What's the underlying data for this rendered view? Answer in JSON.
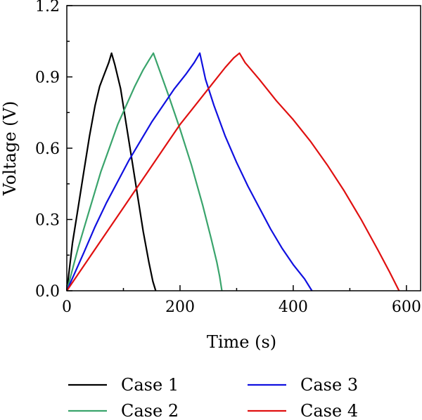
{
  "chart_data": {
    "type": "line",
    "xlabel": "Time (s)",
    "ylabel": "Voltage (V)",
    "xlim": [
      0,
      625
    ],
    "ylim": [
      0,
      1.2
    ],
    "x_ticks": [
      0,
      200,
      400,
      600
    ],
    "x_tick_labels": [
      "0",
      "200",
      "400",
      "600"
    ],
    "x_minor_ticks": [
      100,
      300,
      500
    ],
    "y_ticks": [
      0.0,
      0.3,
      0.6,
      0.9,
      1.2
    ],
    "y_tick_labels": [
      "0.0",
      "0.3",
      "0.6",
      "0.9",
      "1.2"
    ],
    "y_minor_ticks": [
      0.15,
      0.45,
      0.75,
      1.05
    ],
    "grid": false,
    "legend_position": "bottom",
    "series": [
      {
        "name": "Case 1",
        "color": "#000000",
        "points": [
          [
            0,
            0
          ],
          [
            5,
            0.1
          ],
          [
            10,
            0.2
          ],
          [
            20,
            0.35
          ],
          [
            30,
            0.5
          ],
          [
            40,
            0.65
          ],
          [
            50,
            0.78
          ],
          [
            58,
            0.86
          ],
          [
            66,
            0.91
          ],
          [
            74,
            0.96
          ],
          [
            79,
            1.0
          ],
          [
            85,
            0.95
          ],
          [
            95,
            0.85
          ],
          [
            105,
            0.7
          ],
          [
            115,
            0.55
          ],
          [
            125,
            0.4
          ],
          [
            135,
            0.25
          ],
          [
            145,
            0.12
          ],
          [
            152,
            0.04
          ],
          [
            157,
            0.0
          ]
        ]
      },
      {
        "name": "Case 2",
        "color": "#3aa46c",
        "points": [
          [
            0,
            0
          ],
          [
            10,
            0.09
          ],
          [
            20,
            0.18
          ],
          [
            30,
            0.26
          ],
          [
            45,
            0.38
          ],
          [
            60,
            0.5
          ],
          [
            75,
            0.6
          ],
          [
            90,
            0.7
          ],
          [
            105,
            0.78
          ],
          [
            120,
            0.86
          ],
          [
            135,
            0.93
          ],
          [
            145,
            0.97
          ],
          [
            153,
            1.0
          ],
          [
            165,
            0.92
          ],
          [
            180,
            0.82
          ],
          [
            200,
            0.68
          ],
          [
            220,
            0.53
          ],
          [
            240,
            0.36
          ],
          [
            255,
            0.22
          ],
          [
            265,
            0.12
          ],
          [
            270,
            0.06
          ],
          [
            274,
            0.0
          ]
        ]
      },
      {
        "name": "Case 3",
        "color": "#1010e0",
        "points": [
          [
            0,
            0
          ],
          [
            15,
            0.08
          ],
          [
            30,
            0.16
          ],
          [
            50,
            0.27
          ],
          [
            70,
            0.37
          ],
          [
            90,
            0.46
          ],
          [
            110,
            0.55
          ],
          [
            130,
            0.63
          ],
          [
            150,
            0.71
          ],
          [
            170,
            0.78
          ],
          [
            190,
            0.85
          ],
          [
            210,
            0.91
          ],
          [
            225,
            0.96
          ],
          [
            235,
            1.0
          ],
          [
            245,
            0.89
          ],
          [
            260,
            0.78
          ],
          [
            280,
            0.65
          ],
          [
            300,
            0.54
          ],
          [
            320,
            0.44
          ],
          [
            340,
            0.35
          ],
          [
            360,
            0.26
          ],
          [
            380,
            0.18
          ],
          [
            400,
            0.11
          ],
          [
            420,
            0.05
          ],
          [
            433,
            0.0
          ]
        ]
      },
      {
        "name": "Case 4",
        "color": "#e01010",
        "points": [
          [
            0,
            0
          ],
          [
            20,
            0.07
          ],
          [
            40,
            0.14
          ],
          [
            60,
            0.21
          ],
          [
            80,
            0.28
          ],
          [
            100,
            0.35
          ],
          [
            120,
            0.42
          ],
          [
            140,
            0.49
          ],
          [
            160,
            0.56
          ],
          [
            180,
            0.63
          ],
          [
            200,
            0.7
          ],
          [
            220,
            0.76
          ],
          [
            240,
            0.82
          ],
          [
            260,
            0.88
          ],
          [
            280,
            0.94
          ],
          [
            295,
            0.98
          ],
          [
            305,
            1.0
          ],
          [
            315,
            0.96
          ],
          [
            340,
            0.89
          ],
          [
            370,
            0.8
          ],
          [
            400,
            0.72
          ],
          [
            430,
            0.63
          ],
          [
            460,
            0.53
          ],
          [
            490,
            0.42
          ],
          [
            520,
            0.3
          ],
          [
            550,
            0.17
          ],
          [
            570,
            0.08
          ],
          [
            587,
            0.0
          ]
        ]
      }
    ]
  }
}
